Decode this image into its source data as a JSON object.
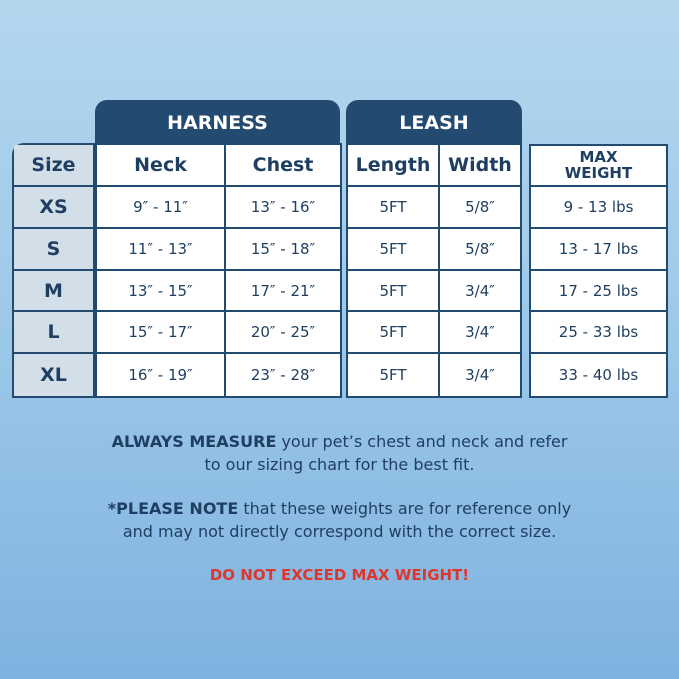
{
  "headers": {
    "harness": "HARNESS",
    "leash": "LEASH",
    "size": "Size",
    "neck": "Neck",
    "chest": "Chest",
    "length": "Length",
    "width": "Width",
    "max_weight": "MAX WEIGHT"
  },
  "rows": [
    {
      "size": "XS",
      "neck": "9″ - 11″",
      "chest": "13″ - 16″",
      "length": "5FT",
      "width": "5/8″",
      "weight": "9 - 13 lbs"
    },
    {
      "size": "S",
      "neck": "11″ - 13″",
      "chest": "15″ - 18″",
      "length": "5FT",
      "width": "5/8″",
      "weight": "13 - 17 lbs"
    },
    {
      "size": "M",
      "neck": "13″ - 15″",
      "chest": "17″ - 21″",
      "length": "5FT",
      "width": "3/4″",
      "weight": "17 - 25 lbs"
    },
    {
      "size": "L",
      "neck": "15″ - 17″",
      "chest": "20″ - 25″",
      "length": "5FT",
      "width": "3/4″",
      "weight": "25 - 33 lbs"
    },
    {
      "size": "XL",
      "neck": "16″ - 19″",
      "chest": "23″ - 28″",
      "length": "5FT",
      "width": "3/4″",
      "weight": "33 - 40 lbs"
    }
  ],
  "notes": {
    "measure_bold": "ALWAYS MEASURE",
    "measure_rest": " your pet’s chest and neck and refer",
    "measure_line2": "to our sizing chart for the best fit.",
    "note_bold": "*PLEASE NOTE",
    "note_rest": " that these weights are for reference only",
    "note_line2": "and may not directly correspond with the correct size.",
    "warning": "DO NOT EXCEED MAX WEIGHT!"
  },
  "colors": {
    "navy": "#234a70",
    "warning": "#e0352b",
    "size_column": "#d3dfe8"
  }
}
